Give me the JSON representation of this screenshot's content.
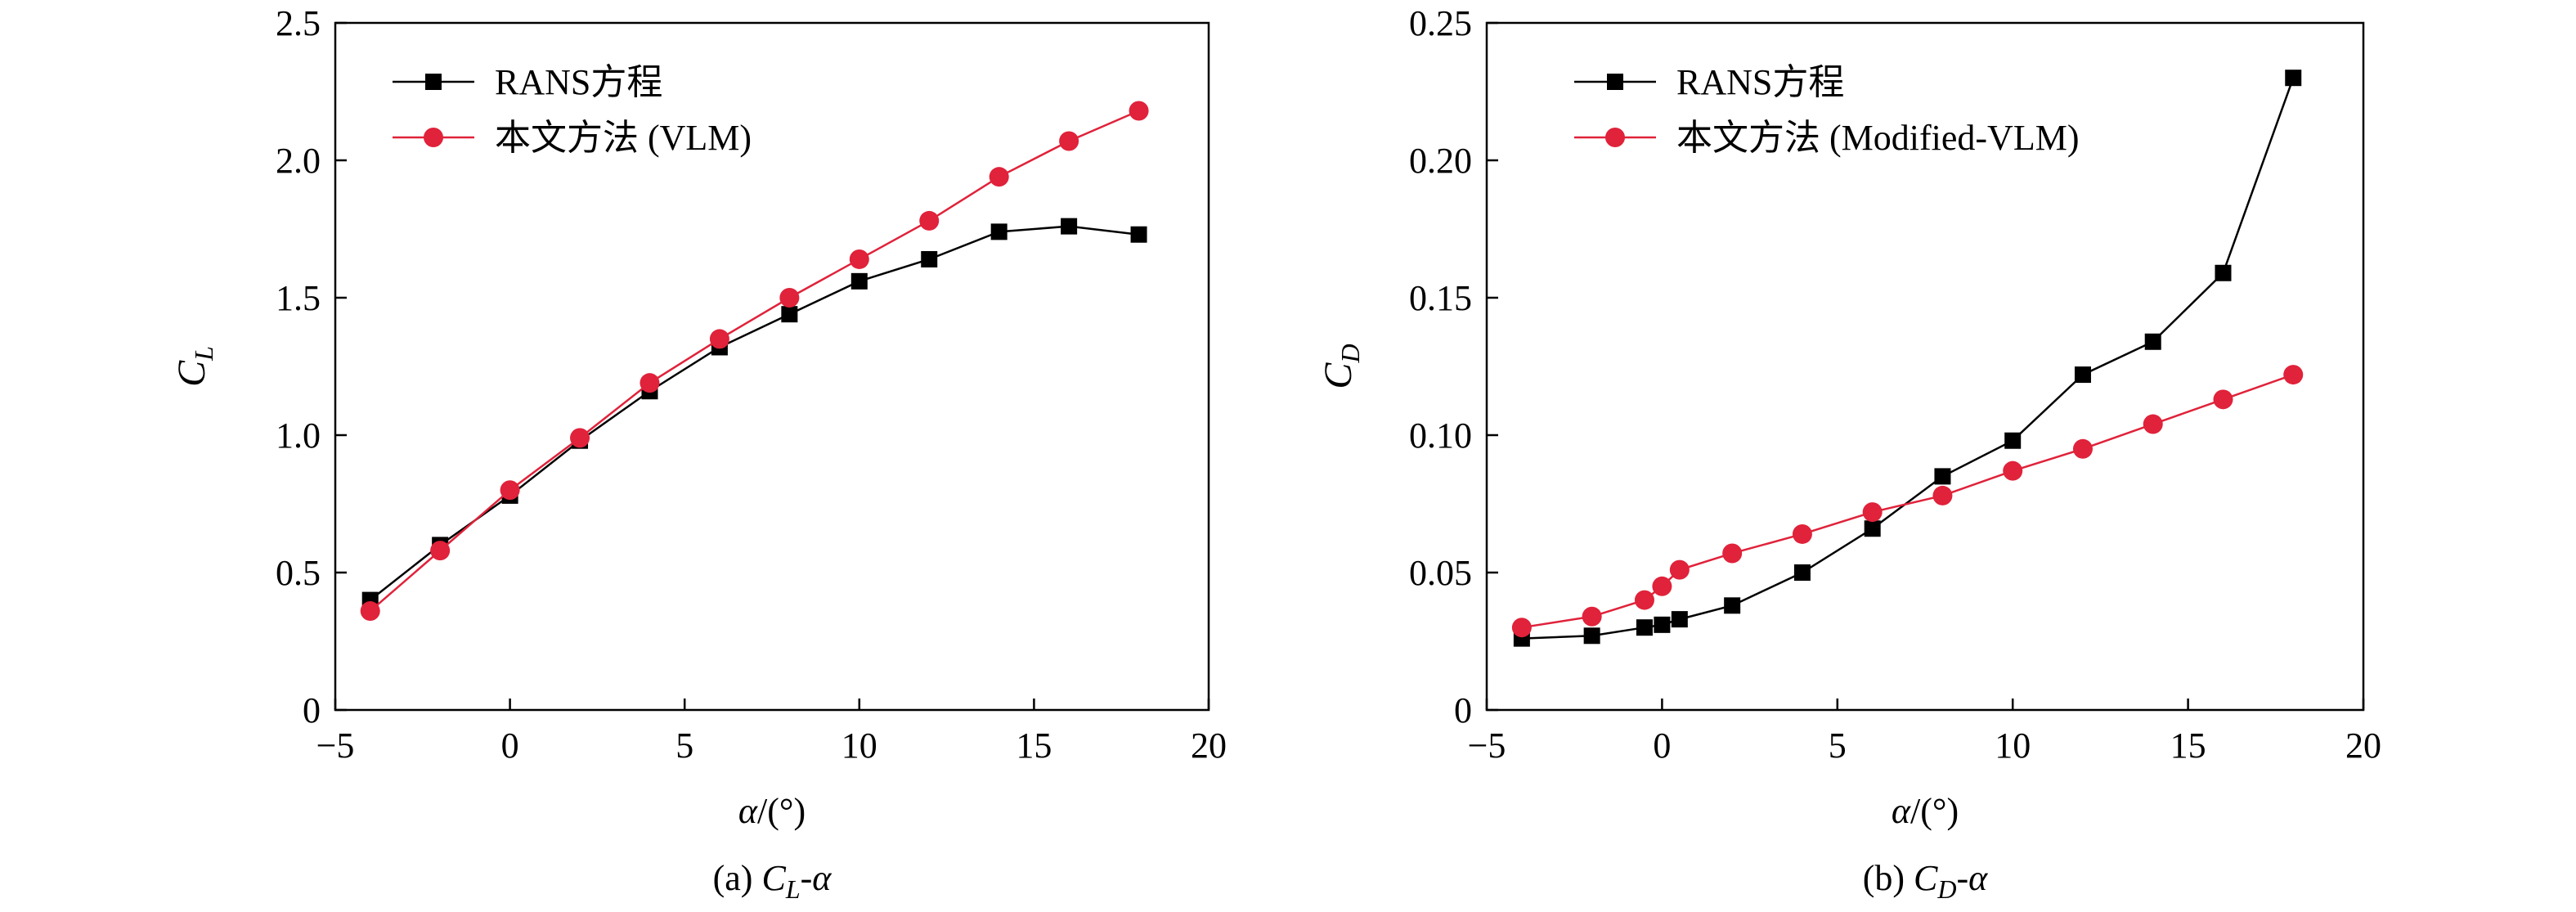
{
  "chart_data": [
    {
      "type": "line",
      "title": "",
      "caption_prefix": "(a) ",
      "caption_sym": "C",
      "caption_sub": "L",
      "caption_suffix": "-α",
      "xlabel": "α/(°)",
      "ylabel_sym": "C",
      "ylabel_sub": "L",
      "xlim": [
        -5,
        20
      ],
      "ylim": [
        0,
        2.5
      ],
      "xticks": [
        -5,
        0,
        5,
        10,
        15,
        20
      ],
      "xtick_labels": [
        "−5",
        "0",
        "5",
        "10",
        "15",
        "20"
      ],
      "yticks": [
        0,
        0.5,
        1.0,
        1.5,
        2.0,
        2.5
      ],
      "ytick_labels": [
        "0",
        "0.5",
        "1.0",
        "1.5",
        "2.0",
        "2.5"
      ],
      "legend_position": "top-left",
      "grid": false,
      "series": [
        {
          "name": "RANS方程",
          "color": "#000000",
          "marker": "square",
          "x": [
            -4,
            -2,
            0,
            2,
            4,
            6,
            8,
            10,
            12,
            14,
            16,
            18
          ],
          "y": [
            0.4,
            0.6,
            0.78,
            0.98,
            1.16,
            1.32,
            1.44,
            1.56,
            1.64,
            1.74,
            1.76,
            1.73
          ]
        },
        {
          "name": "本文方法 (VLM)",
          "color": "#e0223a",
          "marker": "circle",
          "x": [
            -4,
            -2,
            0,
            2,
            4,
            6,
            8,
            10,
            12,
            14,
            16,
            18
          ],
          "y": [
            0.36,
            0.58,
            0.8,
            0.99,
            1.19,
            1.35,
            1.5,
            1.64,
            1.78,
            1.94,
            2.07,
            2.18
          ]
        }
      ]
    },
    {
      "type": "line",
      "title": "",
      "caption_prefix": "(b) ",
      "caption_sym": "C",
      "caption_sub": "D",
      "caption_suffix": "-α",
      "xlabel": "α/(°)",
      "ylabel_sym": "C",
      "ylabel_sub": "D",
      "xlim": [
        -5,
        20
      ],
      "ylim": [
        0,
        0.25
      ],
      "xticks": [
        -5,
        0,
        5,
        10,
        15,
        20
      ],
      "xtick_labels": [
        "−5",
        "0",
        "5",
        "10",
        "15",
        "20"
      ],
      "yticks": [
        0,
        0.05,
        0.1,
        0.15,
        0.2,
        0.25
      ],
      "ytick_labels": [
        "0",
        "0.05",
        "0.10",
        "0.15",
        "0.20",
        "0.25"
      ],
      "legend_position": "top-left",
      "grid": false,
      "series": [
        {
          "name": "RANS方程",
          "color": "#000000",
          "marker": "square",
          "x": [
            -4,
            -2,
            -0.5,
            0,
            0.5,
            2,
            4,
            6,
            8,
            10,
            12,
            14,
            16,
            18
          ],
          "y": [
            0.026,
            0.027,
            0.03,
            0.031,
            0.033,
            0.038,
            0.05,
            0.066,
            0.085,
            0.098,
            0.122,
            0.134,
            0.159,
            0.23
          ]
        },
        {
          "name": "本文方法 (Modified-VLM)",
          "color": "#e0223a",
          "marker": "circle",
          "x": [
            -4,
            -2,
            -0.5,
            0,
            0.5,
            2,
            4,
            6,
            8,
            10,
            12,
            14,
            16,
            18
          ],
          "y": [
            0.03,
            0.034,
            0.04,
            0.045,
            0.051,
            0.057,
            0.064,
            0.072,
            0.078,
            0.087,
            0.095,
            0.104,
            0.113,
            0.122
          ]
        }
      ]
    }
  ]
}
